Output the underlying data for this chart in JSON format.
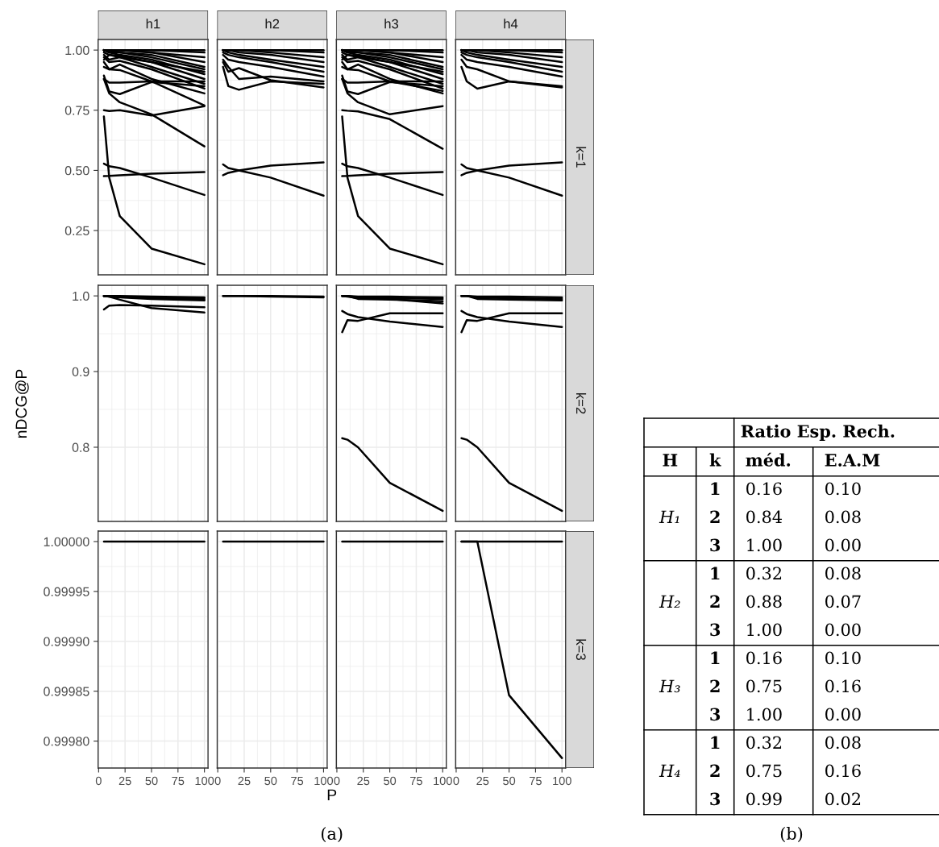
{
  "chart_data": [
    {
      "type": "line",
      "title": "h1",
      "x": [
        5,
        10,
        20,
        50,
        100
      ],
      "xlim": [
        -0.5,
        103.4
      ],
      "xticks": [
        0,
        25,
        50,
        75,
        100
      ],
      "ylim": [
        0.066,
        1.044
      ],
      "yticks": [
        {
          "value": 1.0,
          "label": "1.00"
        },
        0.75,
        {
          "value": 0.5,
          "label": "0.50"
        },
        0.25
      ],
      "grid": true,
      "tick_labels": "y",
      "series": [
        {
          "color": "#000000",
          "values": [
            0.724,
            0.47,
            0.31,
            0.175,
            0.11
          ]
        },
        {
          "color": "#000000",
          "values": [
            0.528,
            0.517,
            0.51,
            0.47,
            0.398
          ]
        },
        {
          "color": "#000000",
          "values": [
            0.476,
            0.477,
            0.48,
            0.486,
            0.493
          ]
        },
        {
          "color": "#000000",
          "values": [
            0.75,
            0.747,
            0.75,
            0.728,
            0.767
          ]
        },
        {
          "color": "#000000",
          "values": [
            0.88,
            0.82,
            0.783,
            0.733,
            0.6
          ]
        },
        {
          "color": "#000000",
          "values": [
            0.93,
            0.92,
            0.917,
            0.87,
            0.77
          ]
        },
        {
          "color": "#000000",
          "values": [
            0.894,
            0.828,
            0.817,
            0.867,
            0.85
          ]
        },
        {
          "color": "#000000",
          "values": [
            0.88,
            0.865,
            0.865,
            0.87,
            0.87
          ]
        },
        {
          "color": "#000000",
          "values": [
            0.95,
            0.92,
            0.94,
            0.88,
            0.82
          ]
        },
        {
          "color": "#000000",
          "values": [
            0.97,
            0.95,
            0.955,
            0.92,
            0.84
          ]
        },
        {
          "color": "#000000",
          "values": [
            0.98,
            0.96,
            0.97,
            0.93,
            0.86
          ]
        },
        {
          "color": "#000000",
          "values": [
            0.99,
            0.98,
            0.975,
            0.95,
            0.88
          ]
        },
        {
          "color": "#000000",
          "values": [
            1.0,
            0.99,
            0.98,
            0.96,
            0.9
          ]
        },
        {
          "color": "#000000",
          "values": [
            1.0,
            0.99,
            0.99,
            0.97,
            0.92
          ]
        },
        {
          "color": "#000000",
          "values": [
            1.0,
            1.0,
            0.99,
            0.98,
            0.93
          ]
        },
        {
          "color": "#000000",
          "values": [
            1.0,
            1.0,
            1.0,
            0.99,
            0.95
          ]
        },
        {
          "color": "#000000",
          "values": [
            1.0,
            1.0,
            1.0,
            0.99,
            0.97
          ]
        },
        {
          "color": "#000000",
          "values": [
            1.0,
            1.0,
            1.0,
            1.0,
            0.99
          ]
        },
        {
          "color": "#000000",
          "values": [
            1.0,
            1.0,
            1.0,
            1.0,
            1.0
          ]
        },
        {
          "color": "#000000",
          "values": [
            0.96,
            0.98,
            0.97,
            0.95,
            0.91
          ]
        }
      ]
    },
    {
      "type": "line",
      "title": "h2",
      "x": [
        5,
        10,
        20,
        50,
        100
      ],
      "xlim": [
        -0.5,
        103.4
      ],
      "xticks": [
        0,
        25,
        50,
        75,
        100
      ],
      "ylim": [
        0.066,
        1.044
      ],
      "yticks": [
        1.0,
        0.75,
        0.5,
        0.25
      ],
      "grid": true,
      "tick_labels": false,
      "series": [
        {
          "color": "#000000",
          "values": [
            0.525,
            0.51,
            0.5,
            0.47,
            0.395
          ]
        },
        {
          "color": "#000000",
          "values": [
            0.48,
            0.49,
            0.5,
            0.52,
            0.533
          ]
        },
        {
          "color": "#000000",
          "values": [
            0.93,
            0.85,
            0.835,
            0.87,
            0.86
          ]
        },
        {
          "color": "#000000",
          "values": [
            0.95,
            0.91,
            0.925,
            0.875,
            0.845
          ]
        },
        {
          "color": "#000000",
          "values": [
            0.96,
            0.93,
            0.88,
            0.89,
            0.87
          ]
        },
        {
          "color": "#000000",
          "values": [
            0.98,
            0.96,
            0.95,
            0.93,
            0.89
          ]
        },
        {
          "color": "#000000",
          "values": [
            0.99,
            0.98,
            0.97,
            0.95,
            0.91
          ]
        },
        {
          "color": "#000000",
          "values": [
            1.0,
            0.99,
            0.98,
            0.96,
            0.93
          ]
        },
        {
          "color": "#000000",
          "values": [
            1.0,
            1.0,
            0.99,
            0.98,
            0.95
          ]
        },
        {
          "color": "#000000",
          "values": [
            1.0,
            1.0,
            1.0,
            0.99,
            0.97
          ]
        },
        {
          "color": "#000000",
          "values": [
            1.0,
            1.0,
            1.0,
            1.0,
            0.99
          ]
        },
        {
          "color": "#000000",
          "values": [
            1.0,
            1.0,
            1.0,
            1.0,
            1.0
          ]
        }
      ]
    },
    {
      "type": "line",
      "title": "h3",
      "x": [
        5,
        10,
        20,
        50,
        100
      ],
      "xlim": [
        -0.5,
        103.4
      ],
      "xticks": [
        0,
        25,
        50,
        75,
        100
      ],
      "ylim": [
        0.066,
        1.044
      ],
      "yticks": [
        1.0,
        0.75,
        0.5,
        0.25
      ],
      "grid": true,
      "tick_labels": false,
      "series": [
        {
          "color": "#000000",
          "values": [
            0.724,
            0.47,
            0.31,
            0.175,
            0.11
          ]
        },
        {
          "color": "#000000",
          "values": [
            0.528,
            0.517,
            0.51,
            0.47,
            0.398
          ]
        },
        {
          "color": "#000000",
          "values": [
            0.476,
            0.477,
            0.48,
            0.486,
            0.493
          ]
        },
        {
          "color": "#000000",
          "values": [
            0.75,
            0.748,
            0.745,
            0.713,
            0.59
          ]
        },
        {
          "color": "#000000",
          "values": [
            0.88,
            0.82,
            0.783,
            0.733,
            0.767
          ]
        },
        {
          "color": "#000000",
          "values": [
            0.93,
            0.92,
            0.917,
            0.87,
            0.83
          ]
        },
        {
          "color": "#000000",
          "values": [
            0.894,
            0.828,
            0.817,
            0.867,
            0.85
          ]
        },
        {
          "color": "#000000",
          "values": [
            0.88,
            0.865,
            0.865,
            0.87,
            0.87
          ]
        },
        {
          "color": "#000000",
          "values": [
            0.95,
            0.92,
            0.94,
            0.88,
            0.82
          ]
        },
        {
          "color": "#000000",
          "values": [
            0.97,
            0.95,
            0.955,
            0.92,
            0.84
          ]
        },
        {
          "color": "#000000",
          "values": [
            0.98,
            0.96,
            0.97,
            0.93,
            0.86
          ]
        },
        {
          "color": "#000000",
          "values": [
            0.99,
            0.98,
            0.975,
            0.95,
            0.88
          ]
        },
        {
          "color": "#000000",
          "values": [
            1.0,
            0.99,
            0.98,
            0.96,
            0.9
          ]
        },
        {
          "color": "#000000",
          "values": [
            1.0,
            0.99,
            0.99,
            0.97,
            0.92
          ]
        },
        {
          "color": "#000000",
          "values": [
            1.0,
            1.0,
            0.99,
            0.98,
            0.93
          ]
        },
        {
          "color": "#000000",
          "values": [
            1.0,
            1.0,
            1.0,
            0.99,
            0.95
          ]
        },
        {
          "color": "#000000",
          "values": [
            1.0,
            1.0,
            1.0,
            0.99,
            0.97
          ]
        },
        {
          "color": "#000000",
          "values": [
            1.0,
            1.0,
            1.0,
            1.0,
            0.99
          ]
        },
        {
          "color": "#000000",
          "values": [
            1.0,
            1.0,
            1.0,
            1.0,
            1.0
          ]
        },
        {
          "color": "#000000",
          "values": [
            0.96,
            0.98,
            0.97,
            0.95,
            0.91
          ]
        }
      ]
    },
    {
      "type": "line",
      "title": "h4",
      "annotations": [
        "k=1"
      ],
      "x": [
        5,
        10,
        20,
        50,
        100
      ],
      "xlim": [
        -0.5,
        103.4
      ],
      "xticks": [
        0,
        25,
        50,
        75,
        100
      ],
      "ylim": [
        0.066,
        1.044
      ],
      "yticks": [
        1.0,
        0.75,
        0.5,
        0.25
      ],
      "grid": true,
      "tick_labels": false,
      "series": [
        {
          "color": "#000000",
          "values": [
            0.525,
            0.51,
            0.5,
            0.47,
            0.395
          ]
        },
        {
          "color": "#000000",
          "values": [
            0.48,
            0.49,
            0.5,
            0.52,
            0.533
          ]
        },
        {
          "color": "#000000",
          "values": [
            0.93,
            0.87,
            0.84,
            0.87,
            0.85
          ]
        },
        {
          "color": "#000000",
          "values": [
            0.96,
            0.93,
            0.92,
            0.87,
            0.845
          ]
        },
        {
          "color": "#000000",
          "values": [
            0.98,
            0.96,
            0.95,
            0.93,
            0.89
          ]
        },
        {
          "color": "#000000",
          "values": [
            0.99,
            0.98,
            0.97,
            0.95,
            0.91
          ]
        },
        {
          "color": "#000000",
          "values": [
            1.0,
            0.99,
            0.98,
            0.96,
            0.93
          ]
        },
        {
          "color": "#000000",
          "values": [
            1.0,
            1.0,
            0.99,
            0.98,
            0.95
          ]
        },
        {
          "color": "#000000",
          "values": [
            1.0,
            1.0,
            1.0,
            0.99,
            0.97
          ]
        },
        {
          "color": "#000000",
          "values": [
            1.0,
            1.0,
            1.0,
            1.0,
            0.99
          ]
        },
        {
          "color": "#000000",
          "values": [
            1.0,
            1.0,
            1.0,
            1.0,
            1.0
          ]
        }
      ]
    },
    {
      "type": "line",
      "ylabel": "nDCG@P",
      "x": [
        5,
        10,
        20,
        50,
        100
      ],
      "xlim": [
        -0.5,
        103.4
      ],
      "xticks": [
        0,
        25,
        50,
        75,
        100
      ],
      "ylim": [
        0.702,
        1.014
      ],
      "yticks": [
        {
          "value": 1.0,
          "label": "1.0"
        },
        0.9,
        0.8
      ],
      "grid": true,
      "tick_labels": "y",
      "series": [
        {
          "color": "#000000",
          "values": [
            0.982,
            0.987,
            0.988,
            0.987,
            0.985
          ]
        },
        {
          "color": "#000000",
          "values": [
            1.0,
            0.999,
            0.995,
            0.984,
            0.978
          ]
        },
        {
          "color": "#000000",
          "values": [
            1.0,
            1.0,
            0.999,
            0.997,
            0.995
          ]
        },
        {
          "color": "#000000",
          "values": [
            1.0,
            1.0,
            0.999,
            0.998,
            0.997
          ]
        },
        {
          "color": "#000000",
          "values": [
            1.0,
            1.0,
            1.0,
            0.999,
            0.998
          ]
        },
        {
          "color": "#000000",
          "values": [
            1.0,
            0.999,
            0.998,
            0.996,
            0.994
          ]
        }
      ]
    },
    {
      "type": "line",
      "x": [
        5,
        10,
        20,
        50,
        100
      ],
      "xlim": [
        -0.5,
        103.4
      ],
      "xticks": [
        0,
        25,
        50,
        75,
        100
      ],
      "ylim": [
        0.702,
        1.014
      ],
      "yticks": [
        1.0,
        0.9,
        0.8
      ],
      "grid": true,
      "tick_labels": false,
      "series": [
        {
          "color": "#000000",
          "values": [
            1.0,
            1.0,
            1.0,
            1.0,
            0.999
          ]
        },
        {
          "color": "#000000",
          "values": [
            1.0,
            1.0,
            1.0,
            0.999,
            0.998
          ]
        }
      ]
    },
    {
      "type": "line",
      "x": [
        5,
        10,
        20,
        50,
        100
      ],
      "xlim": [
        -0.5,
        103.4
      ],
      "xticks": [
        0,
        25,
        50,
        75,
        100
      ],
      "ylim": [
        0.702,
        1.014
      ],
      "yticks": [
        1.0,
        0.9,
        0.8
      ],
      "grid": true,
      "tick_labels": false,
      "series": [
        {
          "color": "#000000",
          "values": [
            0.98,
            0.976,
            0.972,
            0.966,
            0.959
          ]
        },
        {
          "color": "#000000",
          "values": [
            0.952,
            0.968,
            0.967,
            0.977,
            0.977
          ]
        },
        {
          "color": "#000000",
          "values": [
            0.812,
            0.81,
            0.8,
            0.753,
            0.716
          ]
        },
        {
          "color": "#000000",
          "values": [
            1.0,
            1.0,
            0.996,
            0.995,
            0.993
          ]
        },
        {
          "color": "#000000",
          "values": [
            1.0,
            0.999,
            0.997,
            0.996,
            0.99
          ]
        },
        {
          "color": "#000000",
          "values": [
            1.0,
            1.0,
            0.998,
            0.997,
            0.996
          ]
        },
        {
          "color": "#000000",
          "values": [
            1.0,
            1.0,
            0.999,
            0.999,
            0.998
          ]
        }
      ]
    },
    {
      "type": "line",
      "annotations": [
        "k=2"
      ],
      "x": [
        5,
        10,
        20,
        50,
        100
      ],
      "xlim": [
        -0.5,
        103.4
      ],
      "xticks": [
        0,
        25,
        50,
        75,
        100
      ],
      "ylim": [
        0.702,
        1.014
      ],
      "yticks": [
        1.0,
        0.9,
        0.8
      ],
      "grid": true,
      "tick_labels": false,
      "series": [
        {
          "color": "#000000",
          "values": [
            0.98,
            0.976,
            0.972,
            0.966,
            0.959
          ]
        },
        {
          "color": "#000000",
          "values": [
            0.952,
            0.968,
            0.967,
            0.977,
            0.977
          ]
        },
        {
          "color": "#000000",
          "values": [
            0.812,
            0.81,
            0.8,
            0.753,
            0.716
          ]
        },
        {
          "color": "#000000",
          "values": [
            1.0,
            1.0,
            0.996,
            0.995,
            0.994
          ]
        },
        {
          "color": "#000000",
          "values": [
            1.0,
            1.0,
            0.998,
            0.997,
            0.996
          ]
        },
        {
          "color": "#000000",
          "values": [
            1.0,
            1.0,
            0.999,
            0.999,
            0.998
          ]
        }
      ]
    },
    {
      "type": "line",
      "x": [
        5,
        10,
        20,
        50,
        100
      ],
      "xlim": [
        -0.5,
        103.4
      ],
      "xticks": [
        0,
        25,
        50,
        75,
        100
      ],
      "ylim": [
        0.999773,
        1.0000105
      ],
      "yticks": [
        {
          "value": 1.0,
          "label": "1.00000"
        },
        {
          "value": 0.99995,
          "label": "0.99995"
        },
        {
          "value": 0.9999,
          "label": "0.99990"
        },
        {
          "value": 0.99985,
          "label": "0.99985"
        },
        {
          "value": 0.9998,
          "label": "0.99980"
        }
      ],
      "grid": true,
      "series": [
        {
          "color": "#000000",
          "values": [
            1.0,
            1.0,
            1.0,
            1.0,
            1.0
          ]
        }
      ]
    },
    {
      "type": "line",
      "xlabel": "P",
      "annotations": [
        "(a)"
      ],
      "x": [
        5,
        10,
        20,
        50,
        100
      ],
      "xlim": [
        -0.5,
        103.4
      ],
      "xticks": [
        0,
        25,
        50,
        75,
        100
      ],
      "ylim": [
        0.999773,
        1.0000105
      ],
      "yticks": [
        1.0,
        0.99995,
        0.9999,
        0.99985,
        0.9998
      ],
      "grid": true,
      "tick_labels": "x",
      "series": [
        {
          "color": "#000000",
          "values": [
            1.0,
            1.0,
            1.0,
            1.0,
            1.0
          ]
        }
      ]
    },
    {
      "type": "line",
      "x": [
        5,
        10,
        20,
        50,
        100
      ],
      "xlim": [
        -0.5,
        103.4
      ],
      "xticks": [
        0,
        25,
        50,
        75,
        100
      ],
      "ylim": [
        0.999773,
        1.0000105
      ],
      "yticks": [
        1.0,
        0.99995,
        0.9999,
        0.99985,
        0.9998
      ],
      "grid": true,
      "tick_labels": "x",
      "series": [
        {
          "color": "#000000",
          "values": [
            1.0,
            1.0,
            1.0,
            1.0,
            1.0
          ]
        }
      ]
    },
    {
      "type": "line",
      "annotations": [
        "k=3"
      ],
      "x": [
        5,
        10,
        20,
        50,
        100
      ],
      "xlim": [
        -0.5,
        103.4
      ],
      "xticks": [
        0,
        25,
        50,
        75,
        100
      ],
      "ylim": [
        0.999773,
        1.0000105
      ],
      "yticks": [
        1.0,
        0.99995,
        0.9999,
        0.99985,
        0.9998
      ],
      "grid": true,
      "tick_labels": "x",
      "series": [
        {
          "color": "#000000",
          "values": [
            1.0,
            1.0,
            1.0,
            1.0,
            1.0
          ]
        },
        {
          "color": "#000000",
          "values": [
            1.0,
            1.0,
            1.0,
            0.999846,
            0.999783
          ]
        }
      ]
    },
    {
      "type": "other",
      "annotations": [
        "Ratio Esp. Rech.",
        "H",
        "k",
        "méd.",
        "E.A.M",
        "H₁",
        "1",
        "0.16",
        "0.10",
        "2",
        "0.84",
        "0.08",
        "3",
        "1.00",
        "0.00",
        "H₂",
        "1",
        "0.32",
        "0.08",
        "2",
        "0.88",
        "0.07",
        "3",
        "1.00",
        "0.00",
        "H₃",
        "1",
        "0.16",
        "0.10",
        "2",
        "0.75",
        "0.16",
        "3",
        "1.00",
        "0.00",
        "H₄",
        "1",
        "0.32",
        "0.08",
        "2",
        "0.75",
        "0.16",
        "3",
        "0.99",
        "0.02",
        "(b)"
      ]
    }
  ]
}
